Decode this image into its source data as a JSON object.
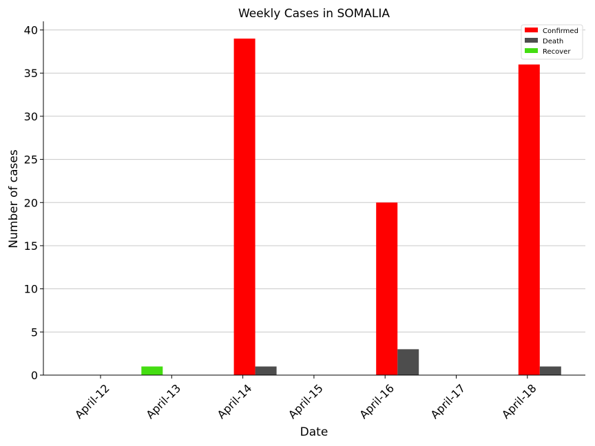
{
  "chart_data": {
    "type": "bar",
    "title": "Weekly Cases in SOMALIA",
    "xlabel": "Date",
    "ylabel": "Number of cases",
    "categories": [
      "April-12",
      "April-13",
      "April-14",
      "April-15",
      "April-16",
      "April-17",
      "April-18"
    ],
    "series": [
      {
        "name": "Confirmed",
        "color": "#ff0000",
        "values": [
          0,
          0,
          39,
          0,
          20,
          0,
          36
        ]
      },
      {
        "name": "Death",
        "color": "#4d4d4d",
        "values": [
          0,
          0,
          1,
          0,
          3,
          0,
          1
        ]
      },
      {
        "name": "Recover",
        "color": "#44dd11",
        "values": [
          0,
          1,
          0,
          0,
          0,
          0,
          0
        ]
      }
    ],
    "ylim": [
      0,
      41
    ],
    "yticks": [
      0,
      5,
      10,
      15,
      20,
      25,
      30,
      35,
      40
    ],
    "grid": "horizontal",
    "legend_position": "top-right"
  }
}
